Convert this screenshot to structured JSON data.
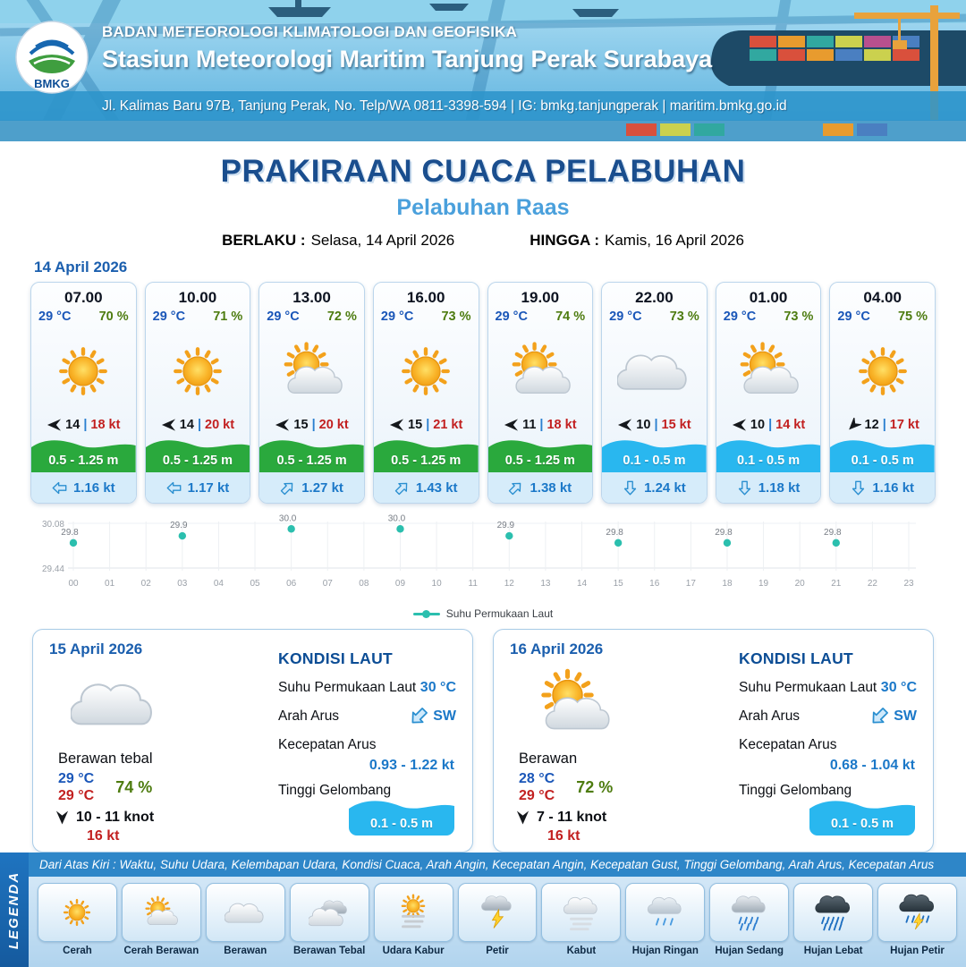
{
  "header": {
    "logo_text": "BMKG",
    "agency": "BADAN METEOROLOGI KLIMATOLOGI DAN GEOFISIKA",
    "station": "Stasiun Meteorologi Maritim Tanjung Perak Surabaya",
    "address": "Jl. Kalimas Baru 97B, Tanjung Perak, No. Telp/WA 0811-3398-594 | IG: bmkg.tanjungperak | maritim.bmkg.go.id"
  },
  "title": {
    "main": "PRAKIRAAN CUACA PELABUHAN",
    "port": "Pelabuhan Raas",
    "valid_label": "BERLAKU :",
    "valid_value": "Selasa, 14 April 2026",
    "until_label": "HINGGA :",
    "until_value": "Kamis, 16 April 2026"
  },
  "hourly": {
    "date": "14 April 2026",
    "sep": "|",
    "cards": [
      {
        "time": "07.00",
        "temp": "29 °C",
        "rh": "70 %",
        "icon": "cerah",
        "wind_dir": "left",
        "wind": "14",
        "gust": "18 kt",
        "wave": "0.5 - 1.25 m",
        "wave_color": "green",
        "current_dir": "left",
        "current": "1.16 kt"
      },
      {
        "time": "10.00",
        "temp": "29 °C",
        "rh": "71 %",
        "icon": "cerah",
        "wind_dir": "left",
        "wind": "14",
        "gust": "20 kt",
        "wave": "0.5 - 1.25 m",
        "wave_color": "green",
        "current_dir": "left",
        "current": "1.17 kt"
      },
      {
        "time": "13.00",
        "temp": "29 °C",
        "rh": "72 %",
        "icon": "cerah-berawan",
        "wind_dir": "left",
        "wind": "15",
        "gust": "20 kt",
        "wave": "0.5 - 1.25 m",
        "wave_color": "green",
        "current_dir": "ne",
        "current": "1.27 kt"
      },
      {
        "time": "16.00",
        "temp": "29 °C",
        "rh": "73 %",
        "icon": "cerah",
        "wind_dir": "left",
        "wind": "15",
        "gust": "21 kt",
        "wave": "0.5 - 1.25 m",
        "wave_color": "green",
        "current_dir": "ne",
        "current": "1.43 kt"
      },
      {
        "time": "19.00",
        "temp": "29 °C",
        "rh": "74 %",
        "icon": "cerah-berawan",
        "wind_dir": "left",
        "wind": "11",
        "gust": "18 kt",
        "wave": "0.5 - 1.25 m",
        "wave_color": "green",
        "current_dir": "ne",
        "current": "1.38 kt"
      },
      {
        "time": "22.00",
        "temp": "29 °C",
        "rh": "73 %",
        "icon": "berawan",
        "wind_dir": "left",
        "wind": "10",
        "gust": "15 kt",
        "wave": "0.1 - 0.5 m",
        "wave_color": "blue",
        "current_dir": "down",
        "current": "1.24 kt"
      },
      {
        "time": "01.00",
        "temp": "29 °C",
        "rh": "73 %",
        "icon": "cerah-berawan",
        "wind_dir": "left",
        "wind": "10",
        "gust": "14 kt",
        "wave": "0.1 - 0.5 m",
        "wave_color": "blue",
        "current_dir": "down",
        "current": "1.18 kt"
      },
      {
        "time": "04.00",
        "temp": "29 °C",
        "rh": "75 %",
        "icon": "cerah",
        "wind_dir": "down-left",
        "wind": "12",
        "gust": "17 kt",
        "wave": "0.1 - 0.5 m",
        "wave_color": "blue",
        "current_dir": "down",
        "current": "1.16 kt"
      }
    ]
  },
  "chart_data": {
    "type": "scatter",
    "series_name": "Suhu Permukaan Laut",
    "x": [
      0,
      3,
      6,
      9,
      12,
      15,
      18,
      21
    ],
    "values": [
      29.8,
      29.9,
      30.0,
      30.0,
      29.9,
      29.8,
      29.8,
      29.8
    ],
    "x_ticks": [
      "00",
      "01",
      "02",
      "03",
      "04",
      "05",
      "06",
      "07",
      "08",
      "09",
      "10",
      "11",
      "12",
      "13",
      "14",
      "15",
      "16",
      "17",
      "18",
      "19",
      "20",
      "21",
      "22",
      "23"
    ],
    "ylim": [
      29.44,
      30.08
    ],
    "y_axis_labels": [
      "29.44",
      "30.08"
    ],
    "unit": "°C",
    "color": "#2bbfae",
    "grid": true,
    "legend_position": "bottom"
  },
  "daily": [
    {
      "date": "15 April 2026",
      "icon": "berawan",
      "condition": "Berawan tebal",
      "temp": "29 °C",
      "rh": "74 %",
      "temp2": "29 °C",
      "wind": "10 - 11 knot",
      "gust": "16 kt",
      "sea": {
        "heading": "KONDISI LAUT",
        "sst_label": "Suhu Permukaan Laut",
        "sst": "30 °C",
        "current_dir_label": "Arah Arus",
        "current_dir": "SW",
        "current_speed_label": "Kecepatan Arus",
        "current_speed": "0.93  - 1.22 kt",
        "wave_label": "Tinggi Gelombang",
        "wave": "0.1 - 0.5 m"
      }
    },
    {
      "date": "16 April 2026",
      "icon": "cerah-berawan",
      "condition": "Berawan",
      "temp": "28 °C",
      "rh": "72 %",
      "temp2": "29 °C",
      "wind": "7  - 11 knot",
      "gust": "16 kt",
      "sea": {
        "heading": "KONDISI LAUT",
        "sst_label": "Suhu Permukaan Laut",
        "sst": "30 °C",
        "current_dir_label": "Arah Arus",
        "current_dir": "SW",
        "current_speed_label": "Kecepatan Arus",
        "current_speed": "0.68 - 1.04 kt",
        "wave_label": "Tinggi Gelombang",
        "wave": "0.1 - 0.5 m"
      }
    }
  ],
  "legend": {
    "title": "LEGENDA",
    "description": "Dari Atas Kiri : Waktu, Suhu Udara, Kelembapan Udara, Kondisi Cuaca, Arah Angin, Kecepatan Angin, Kecepatan Gust, Tinggi Gelombang, Arah Arus, Kecepatan Arus",
    "items": [
      {
        "icon": "cerah",
        "label": "Cerah"
      },
      {
        "icon": "cerah-berawan",
        "label": "Cerah Berawan"
      },
      {
        "icon": "berawan",
        "label": "Berawan"
      },
      {
        "icon": "berawan-tebal",
        "label": "Berawan Tebal"
      },
      {
        "icon": "udara-kabur",
        "label": "Udara Kabur"
      },
      {
        "icon": "petir",
        "label": "Petir"
      },
      {
        "icon": "kabut",
        "label": "Kabut"
      },
      {
        "icon": "hujan-ringan",
        "label": "Hujan Ringan"
      },
      {
        "icon": "hujan-sedang",
        "label": "Hujan Sedang"
      },
      {
        "icon": "hujan-lebat",
        "label": "Hujan Lebat"
      },
      {
        "icon": "hujan-petir",
        "label": "Hujan Petir"
      }
    ]
  },
  "colors": {
    "accent_dark_blue": "#1a4e8e",
    "accent_blue": "#4aa0dc",
    "temp_blue": "#1a56b8",
    "humidity_green": "#4e7c10",
    "gust_red": "#c22020",
    "current_blue": "#1b78c8",
    "wave_green": "#2aa93d",
    "wave_blue": "#29b7ef",
    "chart_teal": "#2bbfae"
  }
}
